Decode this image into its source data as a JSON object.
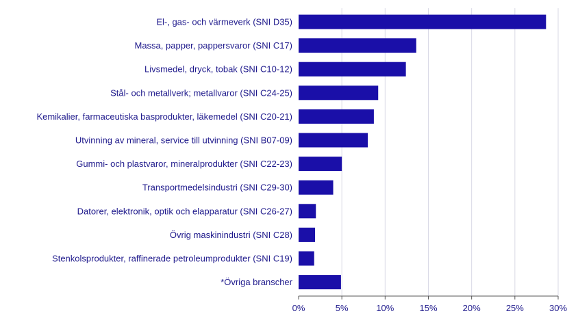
{
  "chart_data": {
    "type": "bar",
    "orientation": "horizontal",
    "categories": [
      "El-, gas- och värmeverk (SNI D35)",
      "Massa, papper, pappersvaror (SNI C17)",
      "Livsmedel, dryck, tobak (SNI C10-12)",
      "Stål- och metallverk; metallvaror (SNI C24-25)",
      "Kemikalier, farmaceutiska basprodukter, läkemedel (SNI C20-21)",
      "Utvinning av mineral, service till utvinning (SNI B07-09)",
      "Gummi- och plastvaror, mineralprodukter (SNI C22-23)",
      "Transportmedelsindustri (SNI C29-30)",
      "Datorer, elektronik, optik och elapparatur (SNI C26-27)",
      "Övrig maskinindustri (SNI C28)",
      "Stenkolsprodukter, raffinerade petroleumprodukter (SNI C19)",
      "*Övriga branscher"
    ],
    "values": [
      28.6,
      13.6,
      12.4,
      9.2,
      8.7,
      8.0,
      5.0,
      4.0,
      2.0,
      1.9,
      1.8,
      4.9
    ],
    "x_ticks": [
      "0%",
      "5%",
      "10%",
      "15%",
      "20%",
      "25%",
      "30%"
    ],
    "xlim": [
      0,
      30
    ],
    "grid": "vertical",
    "title": "",
    "xlabel": "",
    "ylabel": "",
    "colors": {
      "bar": "#1a0fa8",
      "text": "#1f1a8c",
      "grid": "#d9d9e6",
      "axis": "#555555"
    }
  }
}
